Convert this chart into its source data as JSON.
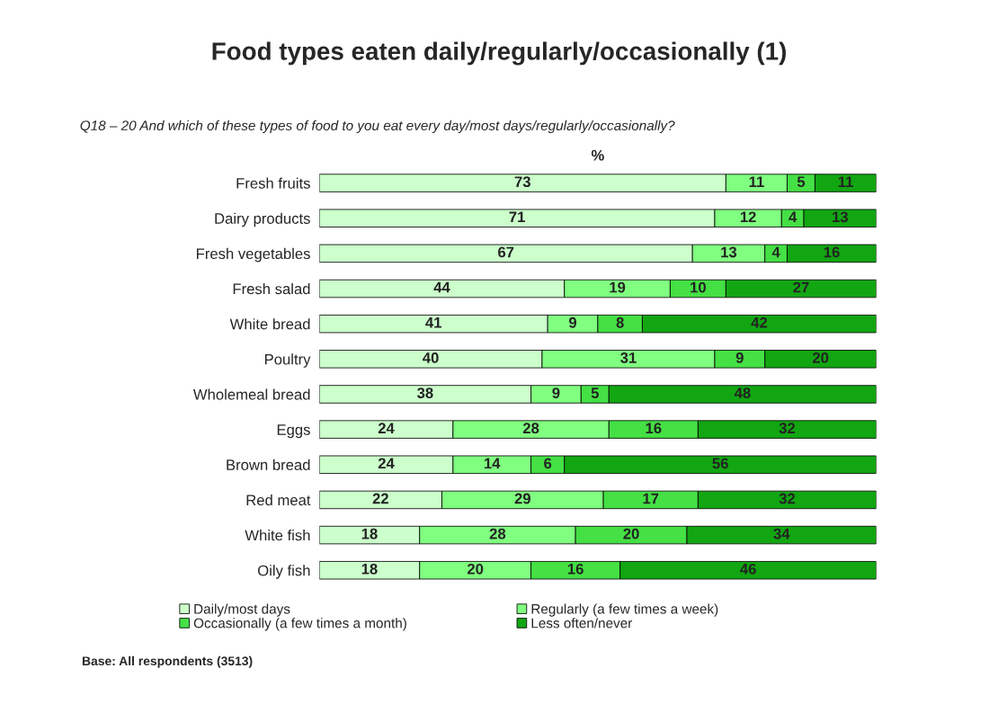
{
  "chart_data": {
    "type": "bar",
    "orientation": "horizontal",
    "stacked": true,
    "data_labels": true,
    "title": "Food types eaten daily/regularly/occasionally (1)",
    "subtitle": "Q18 – 20 And which of these types of food to you eat every day/most days/regularly/occasionally?",
    "xlabel": "%",
    "categories": [
      "Fresh fruits",
      "Dairy products",
      "Fresh vegetables",
      "Fresh salad",
      "White bread",
      "Poultry",
      "Wholemeal bread",
      "Eggs",
      "Brown bread",
      "Red meat",
      "White fish",
      "Oily fish"
    ],
    "series": [
      {
        "name": "Daily/most days",
        "color": "#ccffcc",
        "values": [
          73,
          71,
          67,
          44,
          41,
          40,
          38,
          24,
          24,
          22,
          18,
          18
        ]
      },
      {
        "name": "Regularly (a few times a week)",
        "color": "#80ff80",
        "values": [
          11,
          12,
          13,
          19,
          9,
          31,
          9,
          28,
          14,
          29,
          28,
          20
        ]
      },
      {
        "name": "Occasionally (a few times a month)",
        "color": "#44e044",
        "values": [
          5,
          4,
          4,
          10,
          8,
          9,
          5,
          16,
          6,
          17,
          20,
          16
        ]
      },
      {
        "name": "Less often/never",
        "color": "#12a612",
        "values": [
          11,
          13,
          16,
          27,
          42,
          20,
          48,
          32,
          56,
          32,
          34,
          46
        ]
      }
    ],
    "legend": "bottom",
    "tick_labels": "y",
    "grid": false,
    "annotations": [
      "Base: All respondents (3513)"
    ]
  }
}
